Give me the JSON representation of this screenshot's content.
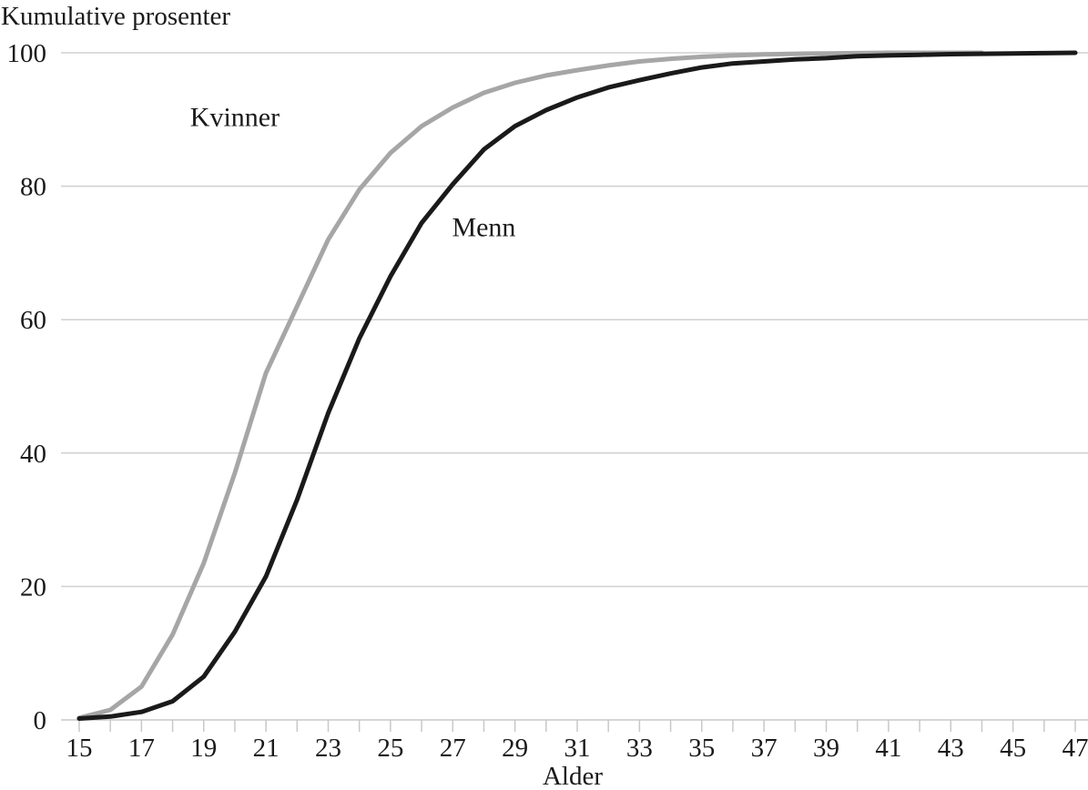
{
  "chart_data": {
    "type": "line",
    "ylabel": "Kumulative prosenter",
    "xlabel": "Alder",
    "xlim": [
      15,
      47
    ],
    "ylim": [
      0,
      100
    ],
    "yticks": [
      0,
      20,
      40,
      60,
      80,
      100
    ],
    "xticks": [
      15,
      17,
      19,
      21,
      23,
      25,
      27,
      29,
      31,
      33,
      35,
      37,
      39,
      41,
      43,
      45,
      47
    ],
    "grid": "horizontal",
    "x": [
      15,
      16,
      17,
      18,
      19,
      20,
      21,
      22,
      23,
      24,
      25,
      26,
      27,
      28,
      29,
      30,
      31,
      32,
      33,
      34,
      35,
      36,
      37,
      38,
      39,
      40,
      41,
      42,
      43,
      44,
      45,
      46,
      47
    ],
    "series": [
      {
        "name": "Kvinner",
        "color": "#a6a6a6",
        "label_at": [
          20,
          89
        ],
        "values": [
          0.3,
          1.5,
          5.0,
          12.8,
          23.5,
          37.0,
          52.0,
          62.0,
          72.0,
          79.5,
          85.0,
          89.0,
          91.8,
          94.0,
          95.5,
          96.6,
          97.4,
          98.1,
          98.7,
          99.1,
          99.4,
          99.6,
          99.75,
          99.85,
          99.9,
          99.95,
          100,
          100,
          100,
          100,
          null,
          null,
          null
        ]
      },
      {
        "name": "Menn",
        "color": "#1a1a1a",
        "label_at": [
          28,
          72.5
        ],
        "values": [
          0.2,
          0.5,
          1.2,
          2.8,
          6.5,
          13.2,
          21.5,
          33.0,
          46.0,
          57.2,
          66.5,
          74.5,
          80.3,
          85.5,
          89.0,
          91.4,
          93.3,
          94.8,
          95.9,
          96.9,
          97.8,
          98.4,
          98.7,
          99.0,
          99.2,
          99.5,
          99.6,
          99.7,
          99.8,
          99.85,
          99.9,
          99.95,
          100
        ]
      }
    ]
  }
}
